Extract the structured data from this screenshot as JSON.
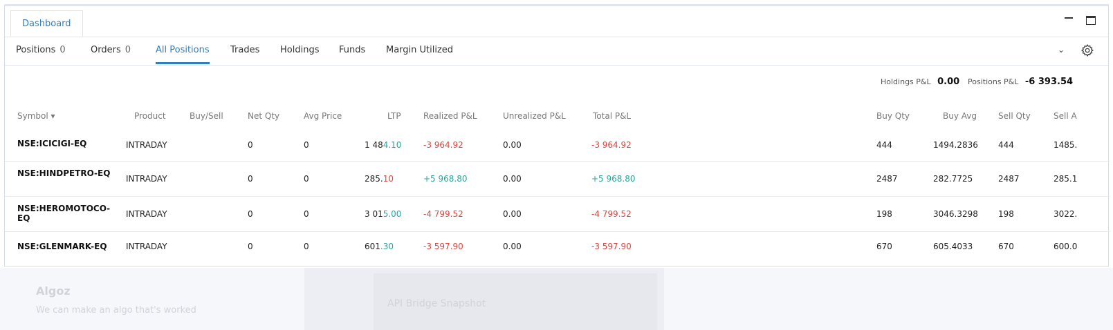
{
  "tabs": {
    "dashboard": "Dashboard"
  },
  "nav": [
    {
      "label": "Positions",
      "count": "0",
      "active": false
    },
    {
      "label": "Orders",
      "count": "0",
      "active": false
    },
    {
      "label": "All Positions",
      "count": "",
      "active": true
    },
    {
      "label": "Trades",
      "count": "",
      "active": false
    },
    {
      "label": "Holdings",
      "count": "",
      "active": false
    },
    {
      "label": "Funds",
      "count": "",
      "active": false
    },
    {
      "label": "Margin Utilized",
      "count": "",
      "active": false
    }
  ],
  "summary": {
    "holdings_label": "Holdings P&L",
    "holdings_value": "0.00",
    "positions_label": "Positions P&L",
    "positions_value": "-6 393.54"
  },
  "columns": {
    "symbol": "Symbol ▾",
    "product": "Product",
    "buysell": "Buy/Sell",
    "netqty": "Net Qty",
    "avgprice": "Avg Price",
    "ltp": "LTP",
    "realized": "Realized P&L",
    "unrealized": "Unrealized P&L",
    "total": "Total P&L",
    "buyqty": "Buy Qty",
    "buyavg": "Buy Avg",
    "sellqty": "Sell Qty",
    "sellavg": "Sell A"
  },
  "rows": [
    {
      "symbol": "NSE:ICICIGI-EQ",
      "product": "INTRADAY",
      "netqty": "0",
      "avgprice": "0",
      "ltp_main": "1 48",
      "ltp_hi": "4.10",
      "ltp_dir": "pos",
      "realized": "-3 964.92",
      "unrealized": "0.00",
      "total": "-3 964.92",
      "buyqty": "444",
      "buyavg": "1494.2836",
      "sellqty": "444",
      "sellavg": "1485."
    },
    {
      "symbol": "NSE:HINDPETRO-EQ",
      "product": "INTRADAY",
      "netqty": "0",
      "avgprice": "0",
      "ltp_main": "285.",
      "ltp_hi": "10",
      "ltp_dir": "neg",
      "realized": "+5 968.80",
      "unrealized": "0.00",
      "total": "+5 968.80",
      "buyqty": "2487",
      "buyavg": "282.7725",
      "sellqty": "2487",
      "sellavg": "285.1"
    },
    {
      "symbol": "NSE:HEROMOTOCO-EQ",
      "product": "INTRADAY",
      "netqty": "0",
      "avgprice": "0",
      "ltp_main": "3 01",
      "ltp_hi": "5.00",
      "ltp_dir": "pos",
      "realized": "-4 799.52",
      "unrealized": "0.00",
      "total": "-4 799.52",
      "buyqty": "198",
      "buyavg": "3046.3298",
      "sellqty": "198",
      "sellavg": "3022."
    },
    {
      "symbol": "NSE:GLENMARK-EQ",
      "product": "INTRADAY",
      "netqty": "0",
      "avgprice": "0",
      "ltp_main": "601",
      "ltp_hi": ".30",
      "ltp_dir": "pos",
      "realized": "-3 597.90",
      "unrealized": "0.00",
      "total": "-3 597.90",
      "buyqty": "670",
      "buyavg": "605.4033",
      "sellqty": "670",
      "sellavg": "600.0"
    }
  ],
  "background": {
    "brand": "Algoz",
    "tagline": "We can make an algo that's worked",
    "card_title": "API Bridge Snapshot"
  },
  "colors": {
    "accent": "#2f7fc1",
    "negative": "#e0423b",
    "positive": "#26a69a"
  }
}
